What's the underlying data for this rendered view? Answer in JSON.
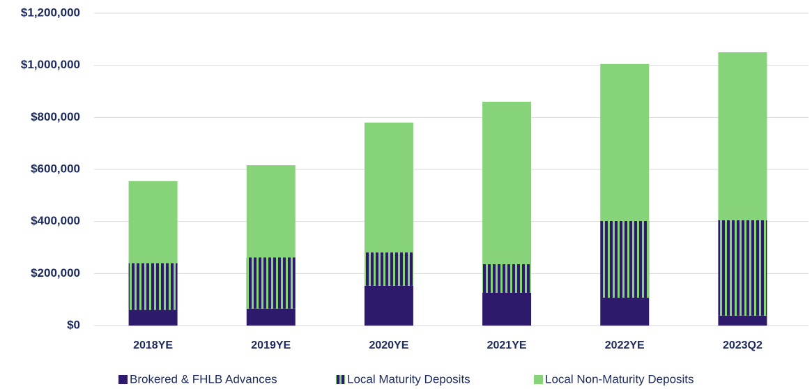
{
  "chart_data": {
    "type": "stacked_bar",
    "categories": [
      "2018YE",
      "2019YE",
      "2020YE",
      "2021YE",
      "2022YE",
      "2023Q2"
    ],
    "series": [
      {
        "name": "Brokered & FHLB Advances",
        "color": "#2e1a6b",
        "values": [
          60000,
          65000,
          153000,
          126000,
          107000,
          38000
        ]
      },
      {
        "name": "Local Maturity Deposits",
        "color": "#2e1a6b",
        "values": [
          180000,
          197000,
          128000,
          110000,
          295000,
          367000
        ]
      },
      {
        "name": "Local Non-Maturity Deposits",
        "color": "#87d37a",
        "values": [
          315000,
          354000,
          499000,
          624000,
          603000,
          645000
        ]
      }
    ],
    "ylim": [
      0,
      1200000
    ],
    "yticks": [
      {
        "value": 0,
        "label": "$0"
      },
      {
        "value": 200000,
        "label": "$200,000"
      },
      {
        "value": 400000,
        "label": "$400,000"
      },
      {
        "value": 600000,
        "label": "$600,000"
      },
      {
        "value": 800000,
        "label": "$800,000"
      },
      {
        "value": 1000000,
        "label": "$1,000,000"
      },
      {
        "value": 1200000,
        "label": "$1,200,000"
      }
    ],
    "grid": true
  }
}
